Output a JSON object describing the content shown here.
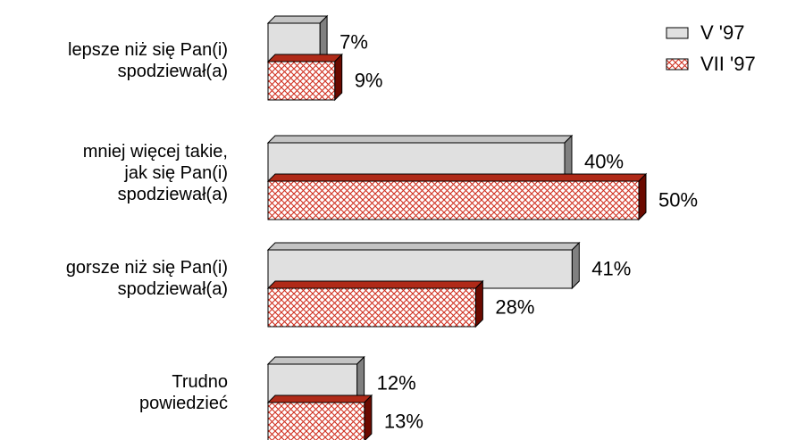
{
  "chart_data": {
    "type": "bar",
    "orientation": "horizontal",
    "style": "3d",
    "categories": [
      [
        "lepsze niż się Pan(i)",
        "spodziewał(a)"
      ],
      [
        "mniej więcej takie,",
        "jak się Pan(i)",
        "spodziewał(a)"
      ],
      [
        "gorsze niż się Pan(i)",
        "spodziewał(a)"
      ],
      [
        "Trudno",
        "powiedzieć"
      ]
    ],
    "series": [
      {
        "name": "V '97",
        "values": [
          7,
          40,
          41,
          12
        ],
        "labels": [
          "7%",
          "40%",
          "41%",
          "12%"
        ]
      },
      {
        "name": "VII '97",
        "values": [
          9,
          50,
          28,
          13
        ],
        "labels": [
          "9%",
          "50%",
          "28%",
          "13%"
        ]
      }
    ],
    "unit": "%",
    "grid": false,
    "legend": "top-right",
    "colors": {
      "series1_front": "#e0e0e0",
      "series1_top": "#c4c4c4",
      "series1_side": "#808080",
      "series2_hatch": "#d03020",
      "series2_top": "#b02a18",
      "series2_side": "#6b0a00",
      "outline": "#000000"
    }
  }
}
